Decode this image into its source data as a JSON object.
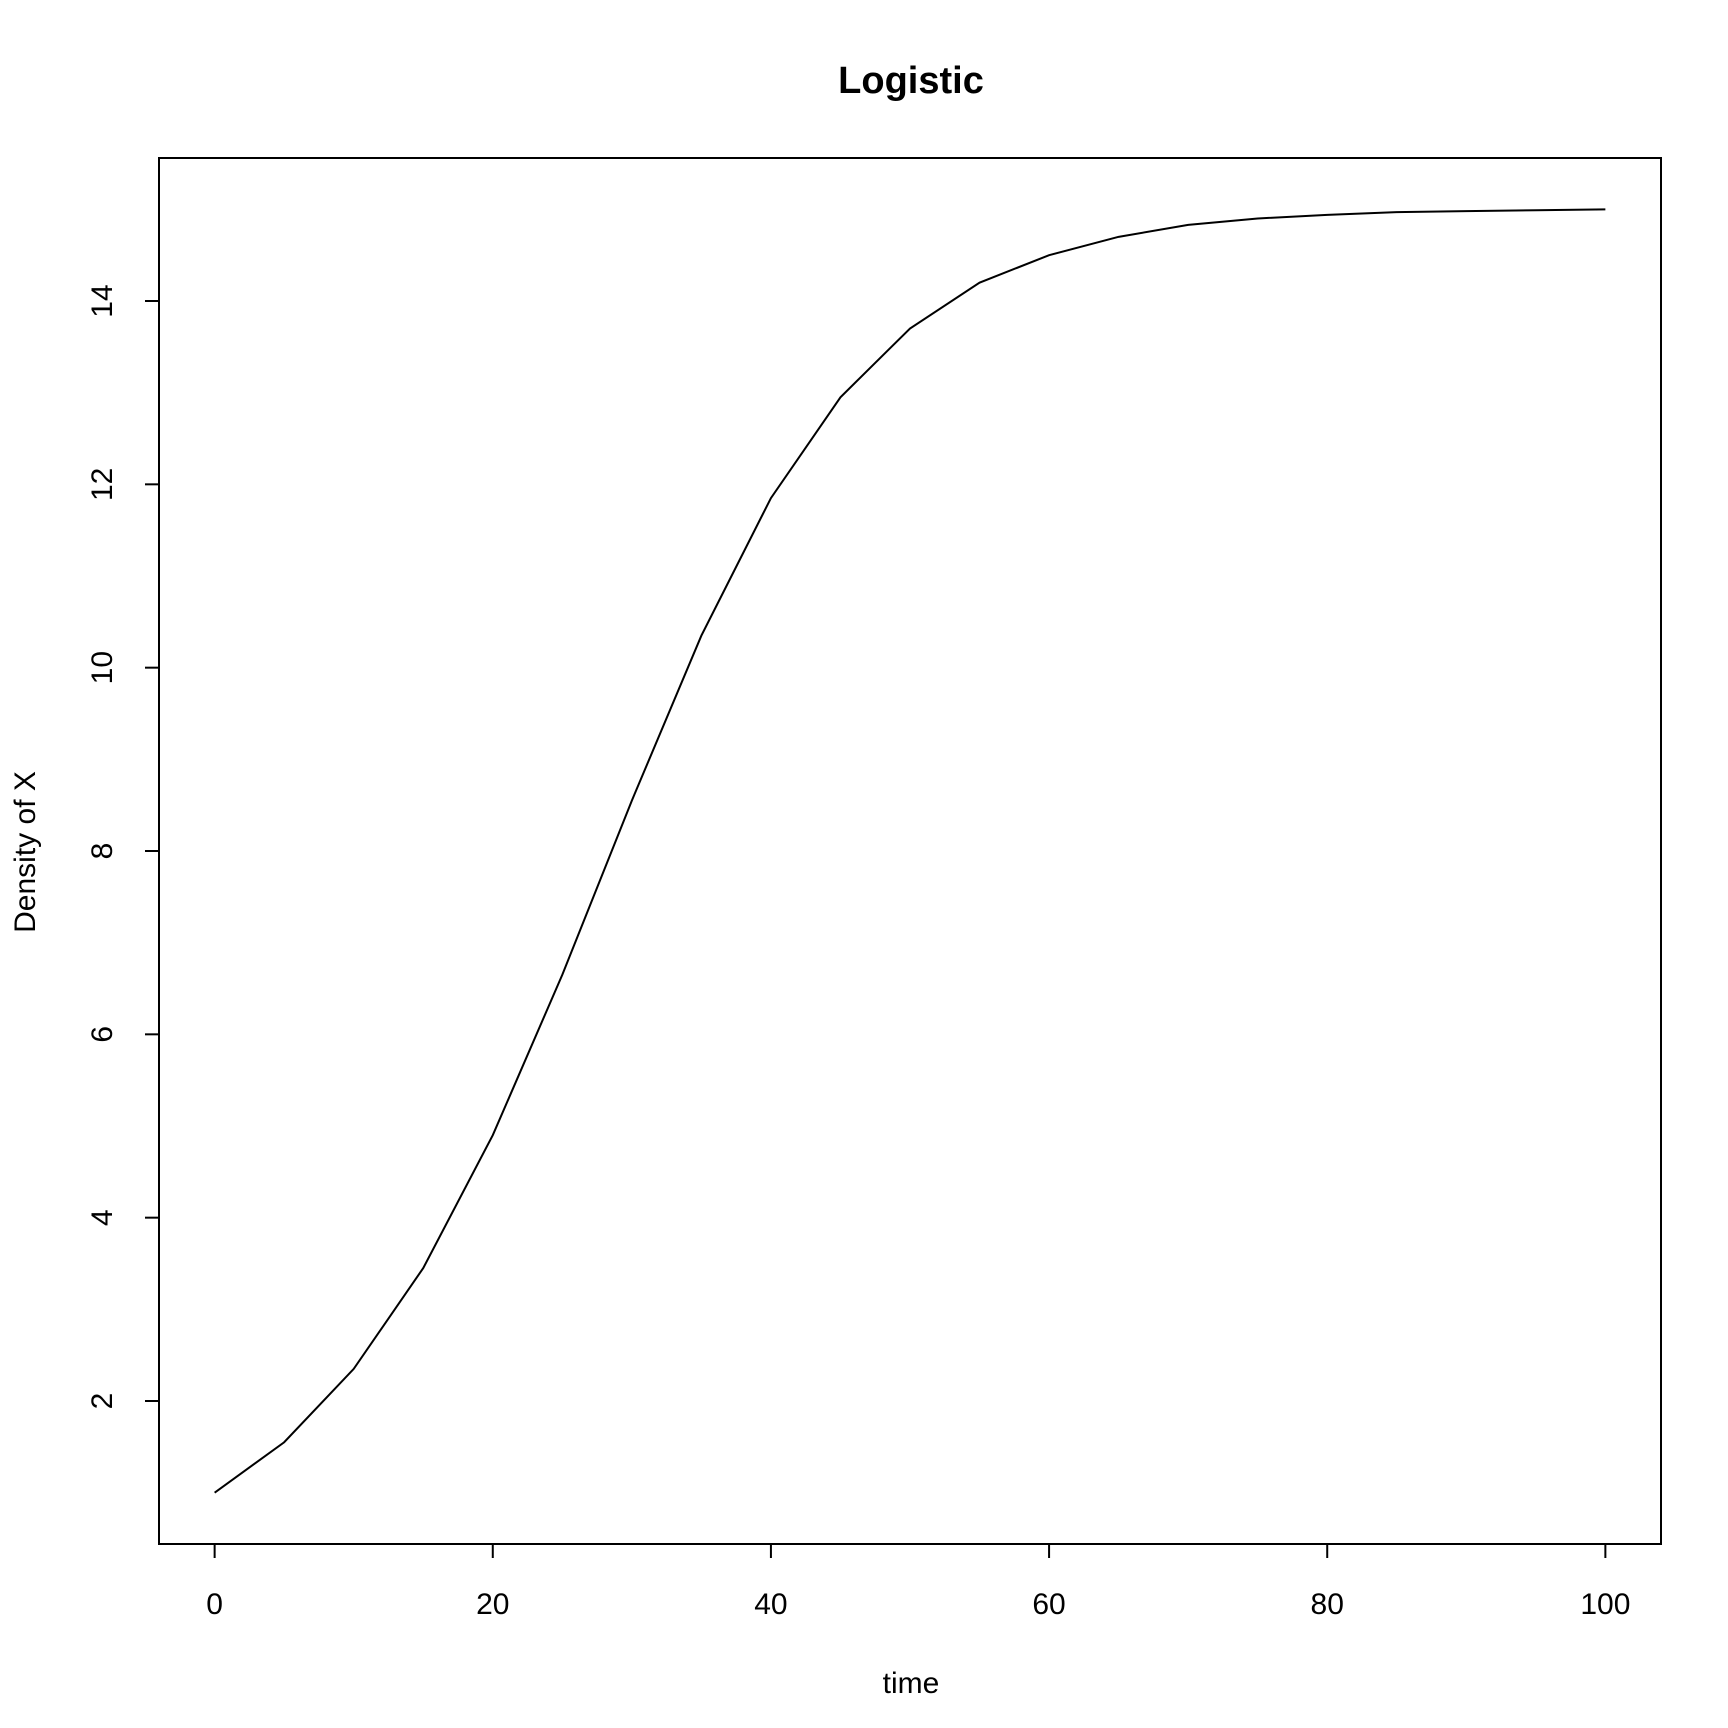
{
  "chart_data": {
    "type": "line",
    "title": "Logistic",
    "xlabel": "time",
    "ylabel": "Density of X",
    "xlim": [
      -4,
      104
    ],
    "ylim": [
      0.44,
      15.56
    ],
    "x_ticks": [
      0,
      20,
      40,
      60,
      80,
      100
    ],
    "x_tick_labels": [
      "0",
      "20",
      "40",
      "60",
      "80",
      "100"
    ],
    "y_ticks": [
      2,
      4,
      6,
      8,
      10,
      12,
      14
    ],
    "y_tick_labels": [
      "2",
      "4",
      "6",
      "8",
      "10",
      "12",
      "14"
    ],
    "grid": false,
    "legend": "none",
    "colors": {
      "line": "#000000",
      "background": "#ffffff"
    },
    "series": [
      {
        "name": "Density of X",
        "x": [
          0,
          5,
          10,
          15,
          20,
          25,
          30,
          35,
          40,
          45,
          50,
          55,
          60,
          65,
          70,
          75,
          80,
          85,
          90,
          95,
          100
        ],
        "y": [
          1.0,
          1.55,
          2.35,
          3.45,
          4.9,
          6.65,
          8.55,
          10.35,
          11.85,
          12.95,
          13.7,
          14.2,
          14.5,
          14.7,
          14.83,
          14.9,
          14.94,
          14.97,
          14.98,
          14.99,
          15.0
        ]
      }
    ]
  }
}
